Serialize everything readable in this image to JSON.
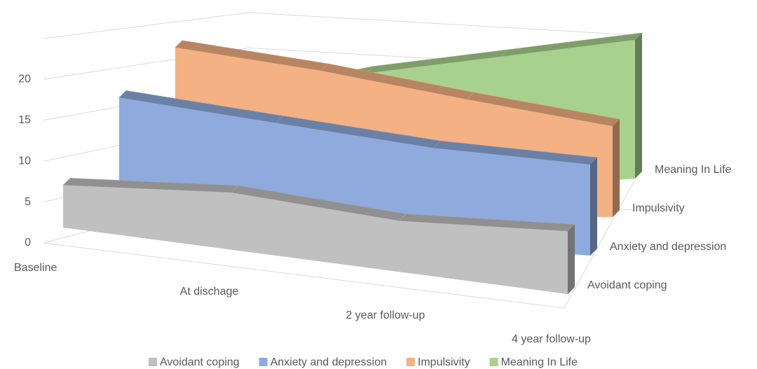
{
  "chart_data": {
    "type": "area3d",
    "categories": [
      "Baseline",
      "At dischage",
      "2 year follow-up",
      "4 year follow-up"
    ],
    "series": [
      {
        "name": "Avoidant coping",
        "color": "#c0c0c0",
        "values": [
          5.5,
          6.8,
          5.6,
          6.4
        ]
      },
      {
        "name": "Anxiety and depression",
        "color": "#8faadc",
        "values": [
          16.4,
          13.6,
          11.2,
          10
        ]
      },
      {
        "name": "Impulsivity",
        "color": "#f4b183",
        "values": [
          22.8,
          18.8,
          14.5,
          10.8
        ]
      },
      {
        "name": "Meaning In Life",
        "color": "#a9d18e",
        "values": [
          15,
          17,
          17.5,
          18
        ]
      }
    ],
    "ylim": [
      0,
      25
    ],
    "yticks": [
      0,
      5,
      10,
      15,
      20
    ],
    "grid": true,
    "legend": "bottom"
  }
}
